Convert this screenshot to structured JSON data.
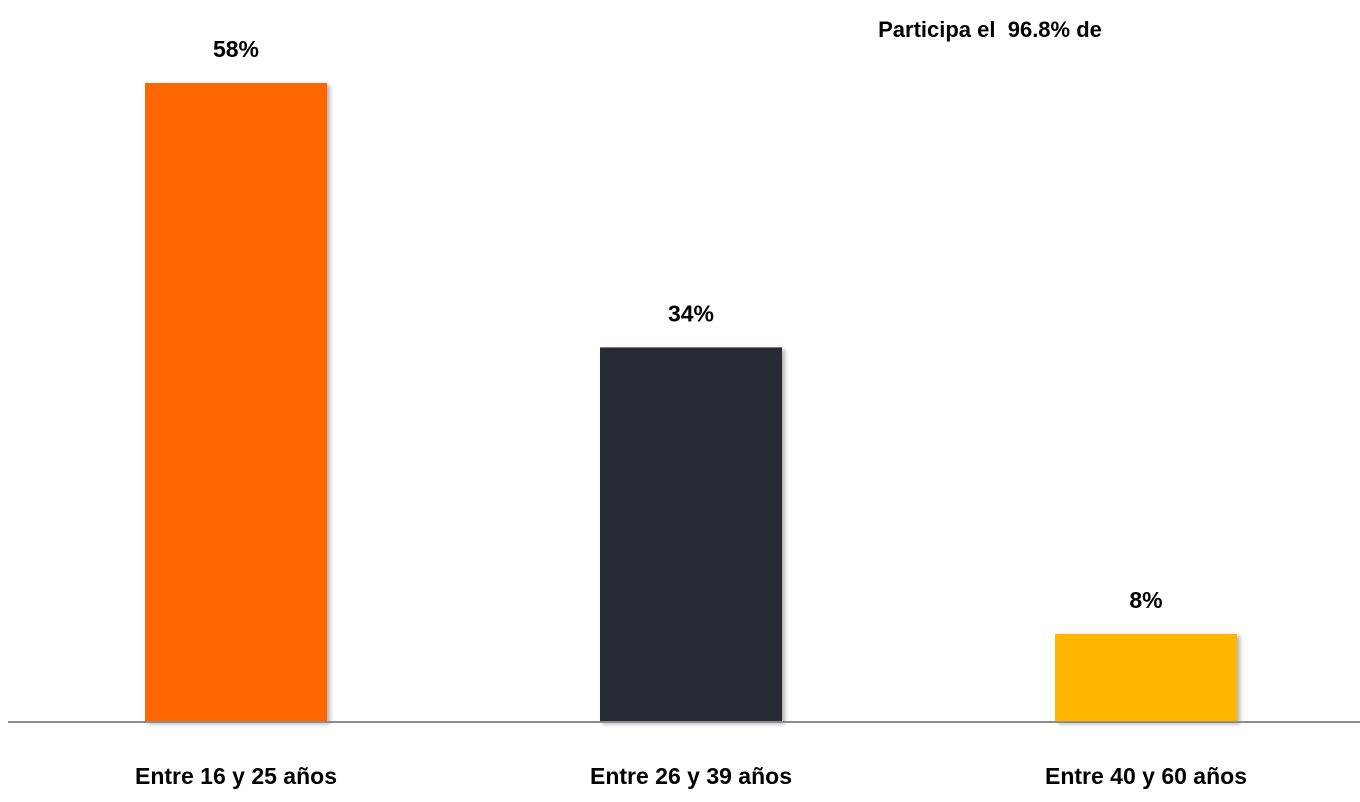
{
  "chart_data": {
    "type": "bar",
    "annotation": "Participa el  96.8% de",
    "categories": [
      "Entre 16 y 25 años",
      "Entre 26 y 39 años",
      "Entre 40 y 60 años"
    ],
    "values": [
      58,
      34,
      8
    ],
    "value_labels": [
      "58%",
      "34%",
      "8%"
    ],
    "colors": [
      "#ff6600",
      "#282a33",
      "#ffb700"
    ],
    "ylim": [
      0,
      58
    ]
  }
}
